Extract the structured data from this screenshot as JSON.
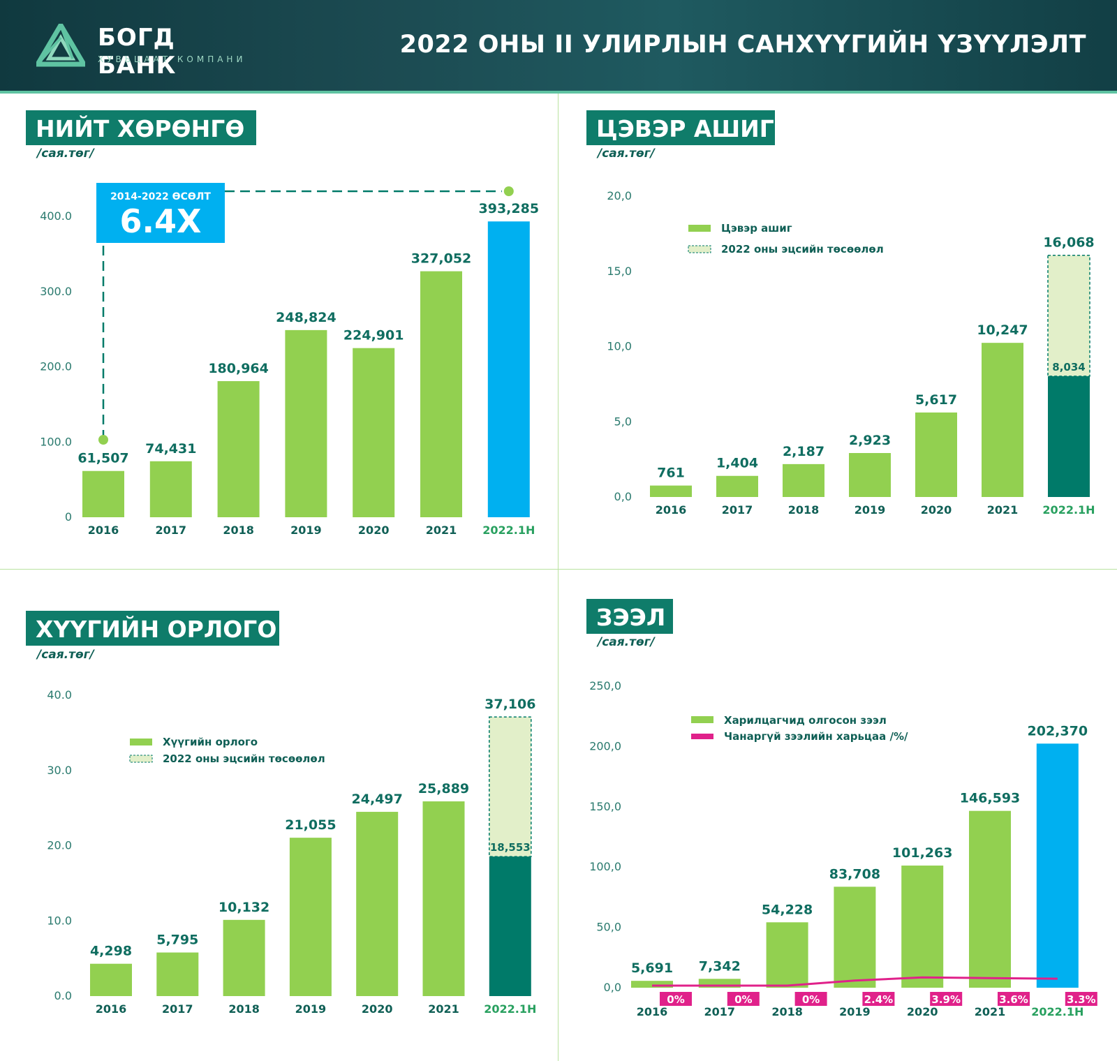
{
  "brand": {
    "name": "БОГД БАНК",
    "subtitle": "ХУВЬЦААТ КОМПАНИ"
  },
  "title": "2022 ОНЫ II УЛИРЛЫН САНХҮҮГИЙН ҮЗҮҮЛЭЛТ",
  "colors": {
    "green": "#92d050",
    "blue": "#00b0f0",
    "teal": "#007a69",
    "light": "#e2efc9",
    "pink": "#e0218a",
    "dark_title_bg": "#0f7c6a"
  },
  "chart_data": [
    {
      "type": "bar",
      "id": "assets",
      "title": "НИЙТ ХӨРӨНГӨ",
      "unit": "/сая.төг/",
      "categories": [
        "2016",
        "2017",
        "2018",
        "2019",
        "2020",
        "2021",
        "2022.1H"
      ],
      "values": [
        61507,
        74431,
        180964,
        248824,
        224901,
        327052,
        393285
      ],
      "labels": [
        "61,507",
        "74,431",
        "180,964",
        "248,824",
        "224,901",
        "327,052",
        "393,285"
      ],
      "yticks": [
        "0",
        "100.0",
        "200.0",
        "300.0",
        "400.0"
      ],
      "ylim": [
        0,
        400000
      ],
      "highlight_last": true,
      "callout": {
        "label": "2014-2022 ӨСӨЛТ",
        "value": "6.4X"
      }
    },
    {
      "type": "bar",
      "id": "profit",
      "title": "ЦЭВЭР АШИГ",
      "unit": "/сая.төг/",
      "categories": [
        "2016",
        "2017",
        "2018",
        "2019",
        "2020",
        "2021",
        "2022.1H"
      ],
      "values": [
        761,
        1404,
        2187,
        2923,
        5617,
        10247,
        8034
      ],
      "labels": [
        "761",
        "1,404",
        "2,187",
        "2,923",
        "5,617",
        "10,247",
        "8,034"
      ],
      "projection": {
        "value": 16068,
        "label": "16,068"
      },
      "yticks": [
        "0,0",
        "5,0",
        "10,0",
        "15,0",
        "20,0"
      ],
      "ylim": [
        0,
        20000
      ],
      "legend": [
        "Цэвэр ашиг",
        "2022 оны эцсийн төсөөлөл"
      ]
    },
    {
      "type": "bar",
      "id": "interest",
      "title": "ХҮҮГИЙН ОРЛОГО",
      "unit": "/сая.төг/",
      "categories": [
        "2016",
        "2017",
        "2018",
        "2019",
        "2020",
        "2021",
        "2022.1H"
      ],
      "values": [
        4298,
        5795,
        10132,
        21055,
        24497,
        25889,
        18553
      ],
      "labels": [
        "4,298",
        "5,795",
        "10,132",
        "21,055",
        "24,497",
        "25,889",
        "18,553"
      ],
      "projection": {
        "value": 37106,
        "label": "37,106"
      },
      "yticks": [
        "0.0",
        "10.0",
        "20.0",
        "30.0",
        "40.0"
      ],
      "ylim": [
        0,
        40000
      ],
      "legend": [
        "Хүүгийн орлого",
        "2022 оны эцсийн төсөөлөл"
      ]
    },
    {
      "type": "bar",
      "id": "loans",
      "title": "ЗЭЭЛ",
      "unit": "/сая.төг/",
      "categories": [
        "2016",
        "2017",
        "2018",
        "2019",
        "2020",
        "2021",
        "2022.1H"
      ],
      "values": [
        5691,
        7342,
        54228,
        83708,
        101263,
        146593,
        202370
      ],
      "labels": [
        "5,691",
        "7,342",
        "54,228",
        "83,708",
        "101,263",
        "146,593",
        "202,370"
      ],
      "npl": [
        0,
        0,
        0,
        2.4,
        3.9,
        3.6,
        3.3
      ],
      "npl_labels": [
        "0%",
        "0%",
        "0%",
        "2.4%",
        "3.9%",
        "3.6%",
        "3.3%"
      ],
      "yticks": [
        "0,0",
        "50,0",
        "100,0",
        "150,0",
        "200,0",
        "250,0"
      ],
      "ylim": [
        0,
        250000
      ],
      "highlight_last": true,
      "legend": [
        "Харилцагчид олгосон зээл",
        "Чанаргүй зээлийн харьцаа /%/"
      ]
    }
  ]
}
